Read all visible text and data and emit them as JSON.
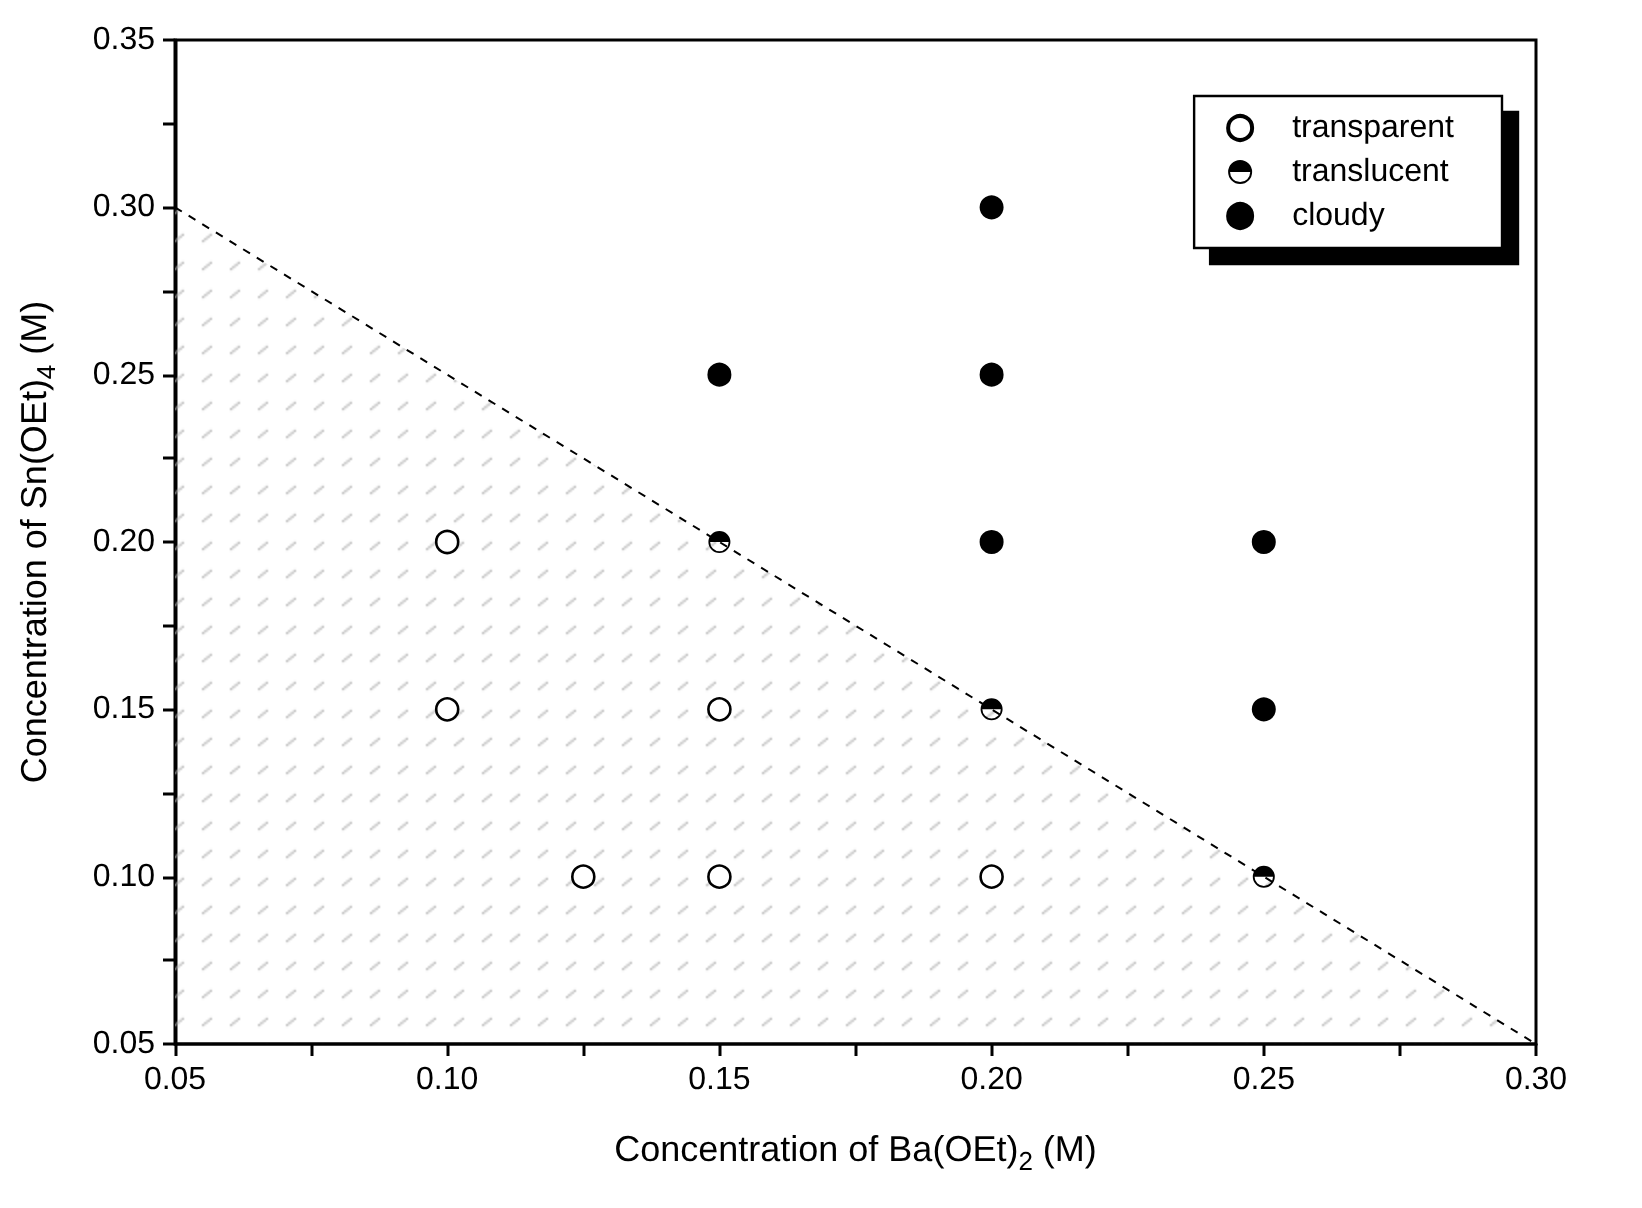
{
  "chart_data": {
    "type": "scatter",
    "xlabel": "Concentration of Ba(OEt)$_{2}$ (M)",
    "ylabel": "Concentration of Sn(OEt)$_{4}$ (M)",
    "xlim": [
      0.05,
      0.3
    ],
    "ylim": [
      0.05,
      0.35
    ],
    "xticks": [
      {
        "value": 0.05,
        "label": "0.05"
      },
      {
        "value": 0.1,
        "label": "0.10"
      },
      {
        "value": 0.15,
        "label": "0.15"
      },
      {
        "value": 0.2,
        "label": "0.20"
      },
      {
        "value": 0.25,
        "label": "0.25"
      },
      {
        "value": 0.3,
        "label": "0.30"
      }
    ],
    "yticks": [
      {
        "value": 0.05,
        "label": "0.05"
      },
      {
        "value": 0.1,
        "label": "0.10"
      },
      {
        "value": 0.15,
        "label": "0.15"
      },
      {
        "value": 0.2,
        "label": "0.20"
      },
      {
        "value": 0.25,
        "label": "0.25"
      },
      {
        "value": 0.3,
        "label": "0.30"
      },
      {
        "value": 0.35,
        "label": "0.35"
      }
    ],
    "grid": false,
    "legend": "top right",
    "marker": "circle",
    "series": [
      {
        "type": "area",
        "color": "#000000",
        "line_style": "dashed",
        "marker": "none",
        "x": [
          0.05,
          0.3
        ],
        "values": [
          0.3,
          0.05
        ]
      },
      {
        "name": "transparent",
        "color": "#000000",
        "x": [
          0.1,
          0.1,
          0.125,
          0.15,
          0.15,
          0.2
        ],
        "values": [
          0.2,
          0.15,
          0.1,
          0.15,
          0.1,
          0.1
        ]
      },
      {
        "name": "translucent",
        "color": "#000000",
        "x": [
          0.15,
          0.2,
          0.25
        ],
        "values": [
          0.2,
          0.15,
          0.1
        ]
      },
      {
        "name": "cloudy",
        "color": "#000000",
        "x": [
          0.15,
          0.2,
          0.2,
          0.2,
          0.25,
          0.25
        ],
        "values": [
          0.25,
          0.3,
          0.25,
          0.2,
          0.2,
          0.15
        ]
      }
    ]
  }
}
